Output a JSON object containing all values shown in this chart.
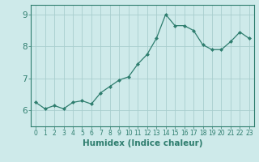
{
  "x": [
    0,
    1,
    2,
    3,
    4,
    5,
    6,
    7,
    8,
    9,
    10,
    11,
    12,
    13,
    14,
    15,
    16,
    17,
    18,
    19,
    20,
    21,
    22,
    23
  ],
  "y": [
    6.25,
    6.05,
    6.15,
    6.05,
    6.25,
    6.3,
    6.2,
    6.55,
    6.75,
    6.95,
    7.05,
    7.45,
    7.75,
    8.25,
    9.0,
    8.65,
    8.65,
    8.5,
    8.05,
    7.9,
    7.9,
    8.15,
    8.45,
    8.25
  ],
  "xlabel": "Humidex (Indice chaleur)",
  "xlim": [
    -0.5,
    23.5
  ],
  "ylim": [
    5.5,
    9.3
  ],
  "yticks": [
    6,
    7,
    8,
    9
  ],
  "xticks": [
    0,
    1,
    2,
    3,
    4,
    5,
    6,
    7,
    8,
    9,
    10,
    11,
    12,
    13,
    14,
    15,
    16,
    17,
    18,
    19,
    20,
    21,
    22,
    23
  ],
  "line_color": "#2e7d6e",
  "marker": "D",
  "marker_size": 2.0,
  "bg_color": "#ceeaea",
  "grid_color": "#a8cece",
  "axis_color": "#2e7d6e",
  "tick_color": "#2e7d6e",
  "label_color": "#2e7d6e",
  "xlabel_fontsize": 7.5,
  "ytick_fontsize": 7.5,
  "xtick_fontsize": 5.5
}
